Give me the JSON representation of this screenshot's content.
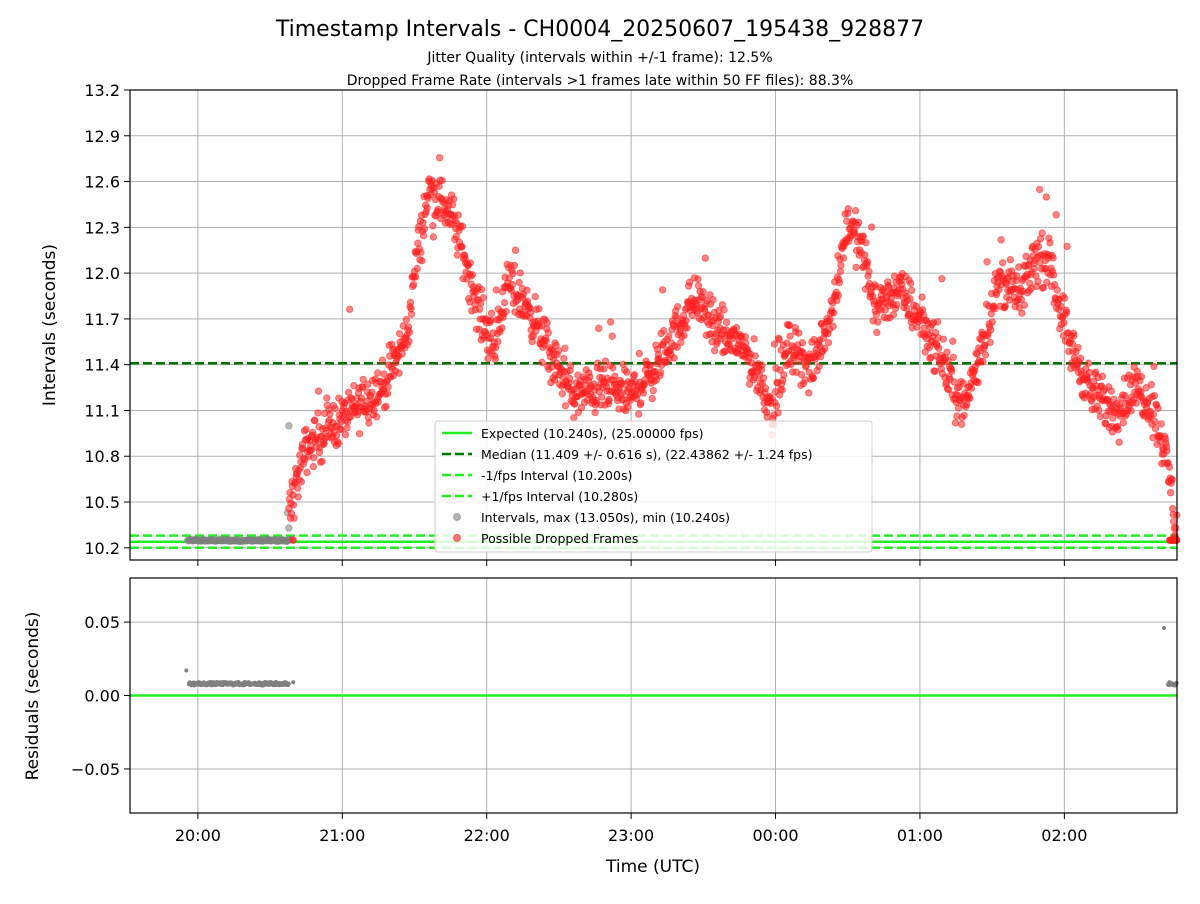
{
  "chart_data": [
    {
      "type": "scatter",
      "title": "Timestamp Intervals - CH0004_20250607_195438_928877",
      "subtitle_lines": [
        "Jitter Quality (intervals within +/-1 frame): 12.5%",
        "Dropped Frame Rate (intervals >1 frames late within 50 FF files): 88.3%"
      ],
      "ylabel": "Intervals (seconds)",
      "ylim": [
        10.12,
        13.2
      ],
      "yticks": [
        10.2,
        10.5,
        10.8,
        11.1,
        11.4,
        11.7,
        12.0,
        12.3,
        12.6,
        12.9,
        13.2
      ],
      "ytick_labels": [
        "10.2",
        "10.5",
        "10.8",
        "11.1",
        "11.4",
        "11.7",
        "12.0",
        "12.3",
        "12.6",
        "12.9",
        "13.2"
      ],
      "xlim_hours": [
        19.53,
        26.78
      ],
      "grid": true,
      "legend_position": "lower-center",
      "lines": [
        {
          "name": "Expected (10.240s), (25.00000 fps)",
          "y": 10.24,
          "color": "#22ee22",
          "style": "solid"
        },
        {
          "name": "Median (11.409 +/- 0.616 s), (22.43862 +/- 1.24 fps)",
          "y": 11.409,
          "color": "#007700",
          "style": "dashed"
        },
        {
          "name": "-1/fps Interval (10.200s)",
          "y": 10.2,
          "color": "#22ee22",
          "style": "dashed"
        },
        {
          "name": "+1/fps Interval (10.280s)",
          "y": 10.28,
          "color": "#22ee22",
          "style": "dashed"
        }
      ],
      "series": [
        {
          "name": "Intervals, max (13.050s), min (10.240s)",
          "color": "#808080",
          "kind": "normal"
        },
        {
          "name": "Possible Dropped Frames",
          "color": "#ff2020",
          "kind": "dropped"
        }
      ],
      "normal_segments": [
        {
          "x_start": 19.93,
          "x_end": 20.65,
          "y": 10.248
        }
      ],
      "dropped_trend": [
        [
          20.63,
          10.45
        ],
        [
          20.75,
          10.85
        ],
        [
          20.9,
          10.98
        ],
        [
          21.1,
          11.12
        ],
        [
          21.3,
          11.28
        ],
        [
          21.45,
          11.6
        ],
        [
          21.5,
          12.0
        ],
        [
          21.6,
          12.55
        ],
        [
          21.75,
          12.4
        ],
        [
          21.85,
          12.1
        ],
        [
          21.93,
          11.8
        ],
        [
          22.05,
          11.5
        ],
        [
          22.15,
          11.95
        ],
        [
          22.3,
          11.75
        ],
        [
          22.45,
          11.45
        ],
        [
          22.6,
          11.2
        ],
        [
          22.8,
          11.25
        ],
        [
          23.0,
          11.2
        ],
        [
          23.15,
          11.35
        ],
        [
          23.3,
          11.6
        ],
        [
          23.45,
          11.85
        ],
        [
          23.6,
          11.6
        ],
        [
          23.75,
          11.55
        ],
        [
          23.9,
          11.3
        ],
        [
          23.98,
          11.1
        ],
        [
          24.1,
          11.55
        ],
        [
          24.25,
          11.35
        ],
        [
          24.4,
          11.8
        ],
        [
          24.5,
          12.35
        ],
        [
          24.6,
          12.15
        ],
        [
          24.7,
          11.75
        ],
        [
          24.85,
          11.9
        ],
        [
          25.0,
          11.7
        ],
        [
          25.15,
          11.45
        ],
        [
          25.3,
          11.1
        ],
        [
          25.45,
          11.6
        ],
        [
          25.55,
          11.95
        ],
        [
          25.7,
          11.85
        ],
        [
          25.8,
          12.1
        ],
        [
          25.9,
          12.05
        ],
        [
          26.05,
          11.5
        ],
        [
          26.2,
          11.2
        ],
        [
          26.35,
          11.1
        ],
        [
          26.5,
          11.25
        ],
        [
          26.6,
          11.15
        ],
        [
          26.68,
          10.9
        ],
        [
          26.74,
          10.6
        ],
        [
          26.78,
          10.25
        ]
      ]
    },
    {
      "type": "scatter",
      "ylabel": "Residuals (seconds)",
      "xlabel": "Time (UTC)",
      "ylim": [
        -0.08,
        0.08
      ],
      "yticks": [
        -0.05,
        0.0,
        0.05
      ],
      "ytick_labels": [
        "−0.05",
        "0.00",
        "0.05"
      ],
      "xticks_hours": [
        20,
        21,
        22,
        23,
        24,
        25,
        26
      ],
      "xtick_labels": [
        "20:00",
        "21:00",
        "22:00",
        "23:00",
        "00:00",
        "01:00",
        "02:00"
      ],
      "grid": true,
      "zero_line_color": "#22ee22",
      "residual_segments": [
        {
          "x_start": 19.94,
          "x_end": 20.63,
          "y": 0.008
        },
        {
          "x_start": 26.72,
          "x_end": 26.78,
          "y": 0.008
        }
      ],
      "residual_points": [
        [
          19.92,
          0.017
        ],
        [
          20.66,
          0.009
        ],
        [
          26.69,
          0.046
        ]
      ]
    }
  ]
}
